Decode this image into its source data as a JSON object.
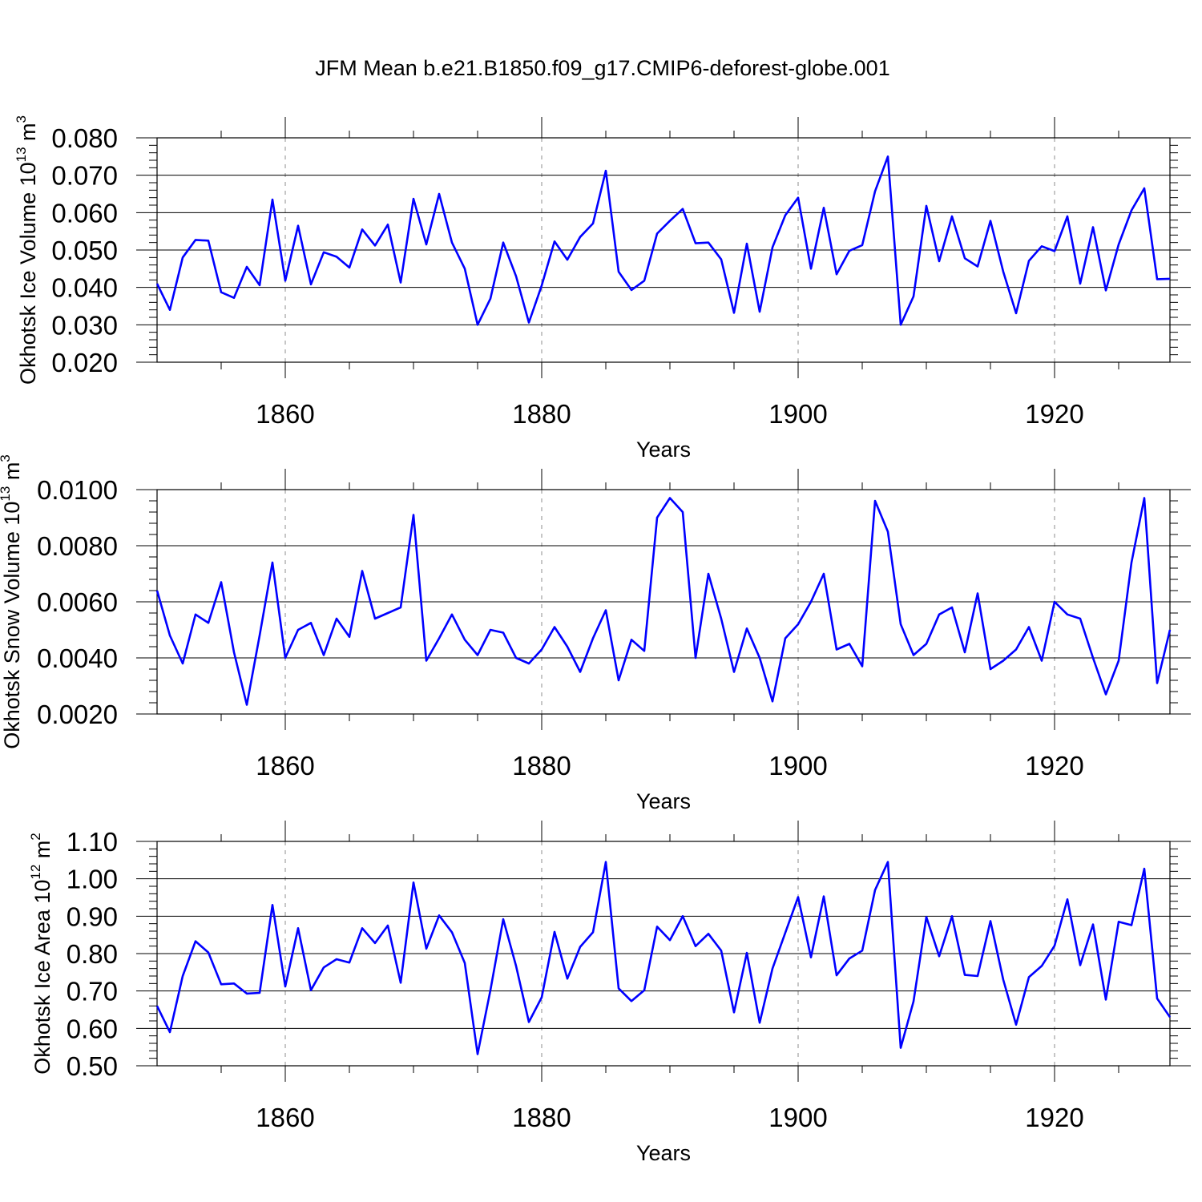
{
  "figure_title": "JFM Mean b.e21.B1850.f09_g17.CMIP6-deforest-globe.001",
  "colors": {
    "line": "#0000ff",
    "axis": "#000000",
    "grid": "#8c8c8c"
  },
  "chart_data": [
    {
      "type": "line",
      "title": "JFM Mean b.e21.B1850.f09_g17.CMIP6-deforest-globe.001",
      "xlabel": "Years",
      "ylabel": {
        "text": "Okhotsk Ice Volume 10",
        "exp": "13",
        "unit": "m",
        "unit_exp": "3"
      },
      "xlim": [
        1850,
        1929
      ],
      "ylim": [
        0.02,
        0.08
      ],
      "yticks": [
        0.02,
        0.03,
        0.04,
        0.05,
        0.06,
        0.07,
        0.08
      ],
      "ytick_labels": [
        "0.020",
        "0.030",
        "0.040",
        "0.050",
        "0.060",
        "0.070",
        "0.080"
      ],
      "xticks": [
        1860,
        1880,
        1900,
        1920
      ],
      "xtick_labels": [
        "1860",
        "1880",
        "1900",
        "1920"
      ],
      "grid": "vertical dashed at major x ticks",
      "x_start": 1850,
      "values": [
        0.041,
        0.034,
        0.048,
        0.0527,
        0.0525,
        0.0387,
        0.0372,
        0.0455,
        0.0406,
        0.0635,
        0.0418,
        0.0565,
        0.0408,
        0.0494,
        0.0482,
        0.0453,
        0.0555,
        0.0512,
        0.0568,
        0.0413,
        0.0637,
        0.0515,
        0.065,
        0.052,
        0.045,
        0.03,
        0.037,
        0.052,
        0.043,
        0.0306,
        0.0405,
        0.0523,
        0.0474,
        0.0535,
        0.0571,
        0.0712,
        0.0442,
        0.0393,
        0.0418,
        0.0544,
        0.0578,
        0.061,
        0.0518,
        0.052,
        0.0475,
        0.0332,
        0.0517,
        0.0335,
        0.0507,
        0.0593,
        0.064,
        0.045,
        0.0613,
        0.0435,
        0.0498,
        0.0513,
        0.0657,
        0.075,
        0.03,
        0.0376,
        0.0618,
        0.047,
        0.059,
        0.0478,
        0.0456,
        0.0578,
        0.0442,
        0.0331,
        0.0471,
        0.051,
        0.0497,
        0.059,
        0.041,
        0.0561,
        0.0392,
        0.0515,
        0.0606,
        0.0665,
        0.0422,
        0.0423
      ]
    },
    {
      "type": "line",
      "xlabel": "Years",
      "ylabel": {
        "text": "Okhotsk Snow Volume 10",
        "exp": "13",
        "unit": "m",
        "unit_exp": "3"
      },
      "xlim": [
        1850,
        1929
      ],
      "ylim": [
        0.002,
        0.01
      ],
      "yticks": [
        0.002,
        0.004,
        0.006,
        0.008,
        0.01
      ],
      "ytick_labels": [
        "0.0020",
        "0.0040",
        "0.0060",
        "0.0080",
        "0.0100"
      ],
      "xticks": [
        1860,
        1880,
        1900,
        1920
      ],
      "xtick_labels": [
        "1860",
        "1880",
        "1900",
        "1920"
      ],
      "grid": "vertical dashed at major x ticks",
      "x_start": 1850,
      "values": [
        0.0064,
        0.0048,
        0.0038,
        0.00555,
        0.00525,
        0.0067,
        0.0042,
        0.00233,
        0.0048,
        0.0074,
        0.004,
        0.005,
        0.00525,
        0.0041,
        0.0054,
        0.00475,
        0.0071,
        0.0054,
        0.0056,
        0.0058,
        0.0091,
        0.0039,
        0.0047,
        0.00555,
        0.00465,
        0.0041,
        0.005,
        0.0049,
        0.004,
        0.0038,
        0.0043,
        0.0051,
        0.0044,
        0.0035,
        0.0047,
        0.0057,
        0.0032,
        0.00465,
        0.00425,
        0.009,
        0.0097,
        0.0092,
        0.004,
        0.007,
        0.0054,
        0.0035,
        0.00505,
        0.004,
        0.00245,
        0.0047,
        0.0052,
        0.006,
        0.007,
        0.0043,
        0.0045,
        0.0037,
        0.0096,
        0.0085,
        0.0052,
        0.0041,
        0.0045,
        0.00555,
        0.0058,
        0.0042,
        0.0063,
        0.0036,
        0.0039,
        0.0043,
        0.0051,
        0.0039,
        0.006,
        0.00555,
        0.0054,
        0.004,
        0.0027,
        0.0039,
        0.0074,
        0.0097,
        0.0031,
        0.005
      ]
    },
    {
      "type": "line",
      "xlabel": "Years",
      "ylabel": {
        "text": "Okhotsk Ice Area 10",
        "exp": "12",
        "unit": "m",
        "unit_exp": "2"
      },
      "xlim": [
        1850,
        1929
      ],
      "ylim": [
        0.5,
        1.1
      ],
      "yticks": [
        0.5,
        0.6,
        0.7,
        0.8,
        0.9,
        1.0,
        1.1
      ],
      "ytick_labels": [
        "0.50",
        "0.60",
        "0.70",
        "0.80",
        "0.90",
        "1.00",
        "1.10"
      ],
      "xticks": [
        1860,
        1880,
        1900,
        1920
      ],
      "xtick_labels": [
        "1860",
        "1880",
        "1900",
        "1920"
      ],
      "grid": "vertical dashed at major x ticks",
      "x_start": 1850,
      "values": [
        0.66,
        0.59,
        0.74,
        0.833,
        0.803,
        0.718,
        0.72,
        0.693,
        0.695,
        0.93,
        0.712,
        0.868,
        0.702,
        0.763,
        0.785,
        0.776,
        0.868,
        0.828,
        0.875,
        0.722,
        0.99,
        0.813,
        0.902,
        0.857,
        0.775,
        0.531,
        0.702,
        0.892,
        0.767,
        0.617,
        0.683,
        0.858,
        0.733,
        0.818,
        0.857,
        1.045,
        0.707,
        0.673,
        0.702,
        0.872,
        0.836,
        0.9,
        0.82,
        0.853,
        0.808,
        0.643,
        0.802,
        0.615,
        0.76,
        0.856,
        0.951,
        0.79,
        0.953,
        0.742,
        0.787,
        0.808,
        0.97,
        1.045,
        0.548,
        0.672,
        0.898,
        0.793,
        0.9,
        0.743,
        0.74,
        0.887,
        0.73,
        0.61,
        0.737,
        0.767,
        0.821,
        0.945,
        0.769,
        0.878,
        0.677,
        0.885,
        0.876,
        1.027,
        0.68,
        0.63
      ]
    }
  ]
}
